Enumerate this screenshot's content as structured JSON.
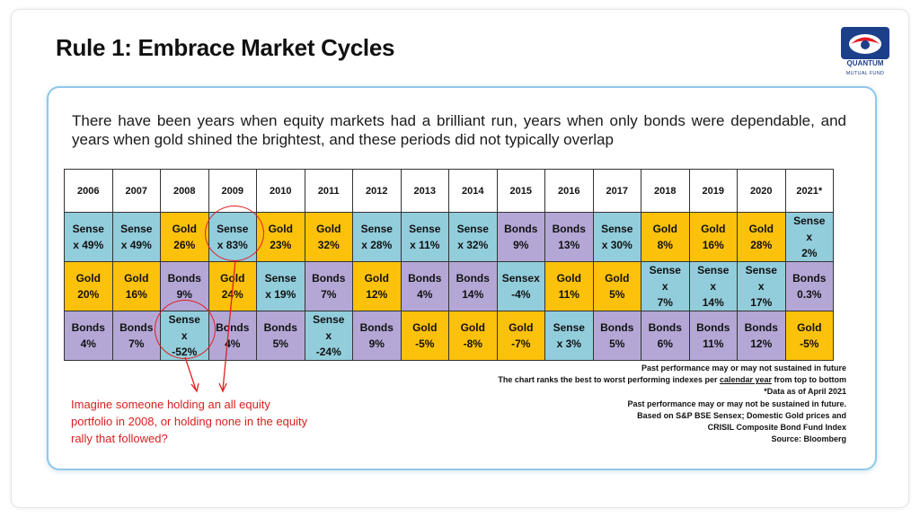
{
  "slide": {
    "title": "Rule 1: Embrace Market Cycles",
    "intro": "There have been years when equity markets had a brilliant run, years when only bonds were dependable, and years when gold shined the brightest, and these periods did not typically overlap"
  },
  "logo": {
    "name": "QUANTUM",
    "subtitle": "MUTUAL FUND",
    "colors": {
      "blue": "#1c3f8a",
      "red": "#e31b23"
    }
  },
  "colors": {
    "sensex": "#92cddc",
    "gold": "#fcc10a",
    "bonds": "#b4a7d6",
    "annotation": "#e02020"
  },
  "table": {
    "years": [
      "2006",
      "2007",
      "2008",
      "2009",
      "2010",
      "2011",
      "2012",
      "2013",
      "2014",
      "2015",
      "2016",
      "2017",
      "2018",
      "2019",
      "2020",
      "2021*"
    ],
    "rows": [
      [
        {
          "type": "sensex",
          "text": "Sense\nx 49%"
        },
        {
          "type": "sensex",
          "text": "Sense\nx 49%"
        },
        {
          "type": "gold",
          "text": "Gold\n26%"
        },
        {
          "type": "sensex",
          "text": "Sense\nx 83%"
        },
        {
          "type": "gold",
          "text": "Gold\n23%"
        },
        {
          "type": "gold",
          "text": "Gold\n32%"
        },
        {
          "type": "sensex",
          "text": "Sense\nx 28%"
        },
        {
          "type": "sensex",
          "text": "Sense\nx 11%"
        },
        {
          "type": "sensex",
          "text": "Sense\nx 32%"
        },
        {
          "type": "bonds",
          "text": "Bonds\n9%"
        },
        {
          "type": "bonds",
          "text": "Bonds\n13%"
        },
        {
          "type": "sensex",
          "text": "Sense\nx 30%"
        },
        {
          "type": "gold",
          "text": "Gold\n8%"
        },
        {
          "type": "gold",
          "text": "Gold\n16%"
        },
        {
          "type": "gold",
          "text": "Gold\n28%"
        },
        {
          "type": "sensex",
          "text": "Sense\nx\n2%"
        }
      ],
      [
        {
          "type": "gold",
          "text": "Gold\n20%"
        },
        {
          "type": "gold",
          "text": "Gold\n16%"
        },
        {
          "type": "bonds",
          "text": "Bonds\n9%"
        },
        {
          "type": "gold",
          "text": "Gold\n24%"
        },
        {
          "type": "sensex",
          "text": "Sense\nx 19%"
        },
        {
          "type": "bonds",
          "text": "Bonds\n7%"
        },
        {
          "type": "gold",
          "text": "Gold\n12%"
        },
        {
          "type": "bonds",
          "text": "Bonds\n4%"
        },
        {
          "type": "bonds",
          "text": "Bonds\n14%"
        },
        {
          "type": "sensex",
          "text": "Sensex\n-4%"
        },
        {
          "type": "gold",
          "text": "Gold\n11%"
        },
        {
          "type": "gold",
          "text": "Gold\n5%"
        },
        {
          "type": "sensex",
          "text": "Sense\nx\n7%"
        },
        {
          "type": "sensex",
          "text": "Sense\nx\n14%"
        },
        {
          "type": "sensex",
          "text": "Sense\nx\n17%"
        },
        {
          "type": "bonds",
          "text": "Bonds\n0.3%"
        }
      ],
      [
        {
          "type": "bonds",
          "text": "Bonds\n4%"
        },
        {
          "type": "bonds",
          "text": "Bonds\n7%"
        },
        {
          "type": "sensex",
          "text": "Sense\nx\n-52%"
        },
        {
          "type": "bonds",
          "text": "Bonds\n4%"
        },
        {
          "type": "bonds",
          "text": "Bonds\n5%"
        },
        {
          "type": "sensex",
          "text": "Sense\nx\n-24%"
        },
        {
          "type": "bonds",
          "text": "Bonds\n9%"
        },
        {
          "type": "gold",
          "text": "Gold\n-5%"
        },
        {
          "type": "gold",
          "text": "Gold\n-8%"
        },
        {
          "type": "gold",
          "text": "Gold\n-7%"
        },
        {
          "type": "sensex",
          "text": "Sense\nx 3%"
        },
        {
          "type": "bonds",
          "text": "Bonds\n5%"
        },
        {
          "type": "bonds",
          "text": "Bonds\n6%"
        },
        {
          "type": "bonds",
          "text": "Bonds\n11%"
        },
        {
          "type": "bonds",
          "text": "Bonds\n12%"
        },
        {
          "type": "gold",
          "text": "Gold\n-5%"
        }
      ]
    ]
  },
  "callout": "Imagine someone holding an all equity portfolio in 2008, or holding none in the equity rally that followed?",
  "notes": {
    "line1": "Past performance may or may not sustained in future",
    "line2_pre": "The chart ranks the best to worst performing indexes per ",
    "line2_ul": "calendar year",
    "line2_post": " from top to bottom",
    "line3": "*Data as of April 2021",
    "line4": "Past performance may or may not be sustained in future.",
    "line5": "Based on S&P BSE Sensex; Domestic Gold prices and",
    "line6": "CRISIL Composite Bond Fund Index",
    "line7": "Source: Bloomberg"
  }
}
